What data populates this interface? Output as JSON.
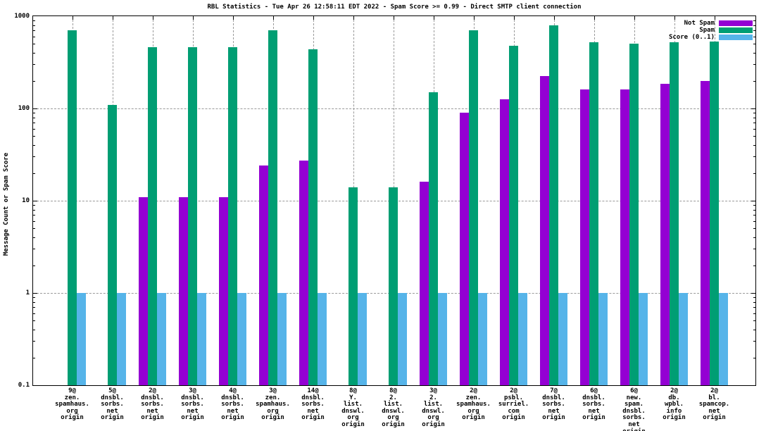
{
  "title": "RBL Statistics - Tue Apr 26 12:58:11 EDT 2022 - Spam Score >= 0.99 - Direct SMTP client connection",
  "chart_data": {
    "type": "bar",
    "title": "RBL Statistics - Tue Apr 26 12:58:11 EDT 2022 - Spam Score >= 0.99 - Direct SMTP client connection",
    "ylabel": "Message Count or Spam Score",
    "xlabel": "",
    "yscale": "log",
    "ylim": [
      0.1,
      1000
    ],
    "ytick_labels": [
      "1000",
      "100",
      "10",
      "1",
      "0.1"
    ],
    "ytick_values": [
      1000,
      100,
      10,
      1,
      0.1
    ],
    "grid": true,
    "legend_position": "top-right",
    "background": "#ffffff",
    "categories": [
      [
        "9@",
        "zen.",
        "spamhaus.",
        "org",
        "origin"
      ],
      [
        "5@",
        "dnsbl.",
        "sorbs.",
        "net",
        "origin"
      ],
      [
        "2@",
        "dnsbl.",
        "sorbs.",
        "net",
        "origin"
      ],
      [
        "3@",
        "dnsbl.",
        "sorbs.",
        "net",
        "origin"
      ],
      [
        "4@",
        "dnsbl.",
        "sorbs.",
        "net",
        "origin"
      ],
      [
        "3@",
        "zen.",
        "spamhaus.",
        "org",
        "origin"
      ],
      [
        "14@",
        "dnsbl.",
        "sorbs.",
        "net",
        "origin"
      ],
      [
        "8@",
        "Y.",
        "list.",
        "dnswl.",
        "org",
        "origin"
      ],
      [
        "8@",
        "2.",
        "list.",
        "dnswl.",
        "org",
        "origin"
      ],
      [
        "3@",
        "2.",
        "list.",
        "dnswl.",
        "org",
        "origin"
      ],
      [
        "2@",
        "zen.",
        "spamhaus.",
        "org",
        "origin"
      ],
      [
        "2@",
        "psbl.",
        "surriel.",
        "com",
        "origin"
      ],
      [
        "7@",
        "dnsbl.",
        "sorbs.",
        "net",
        "origin"
      ],
      [
        "6@",
        "dnsbl.",
        "sorbs.",
        "net",
        "origin"
      ],
      [
        "6@",
        "new.",
        "spam.",
        "dnsbl.",
        "sorbs.",
        "net",
        "origin"
      ],
      [
        "2@",
        "db.",
        "wpbl.",
        "info",
        "origin"
      ],
      [
        "2@",
        "bl.",
        "spamcop.",
        "net",
        "origin"
      ]
    ],
    "series": [
      {
        "name": "Not Spam",
        "color": "#9400d3",
        "values": [
          null,
          null,
          11,
          11,
          11,
          24,
          27,
          null,
          null,
          16,
          90,
          125,
          225,
          160,
          160,
          185,
          200
        ]
      },
      {
        "name": "Spam",
        "color": "#009e73",
        "values": [
          700,
          110,
          460,
          460,
          460,
          700,
          440,
          14,
          14,
          150,
          700,
          480,
          800,
          520,
          500,
          520,
          530
        ]
      },
      {
        "name": "Score (0..1)",
        "color": "#56b4e9",
        "values": [
          1,
          1,
          1,
          1,
          1,
          1,
          1,
          1,
          1,
          1,
          1,
          1,
          1,
          1,
          1,
          1,
          1
        ]
      }
    ]
  }
}
